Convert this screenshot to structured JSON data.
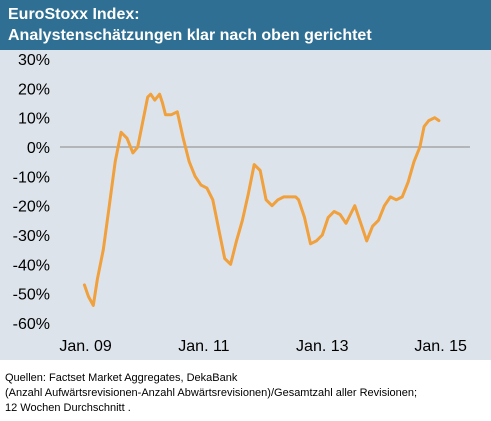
{
  "colors": {
    "title_bg": "#2e6f93",
    "plot_bg": "#dde3ea",
    "line": "#f0a03c",
    "axis": "#888888"
  },
  "header": {
    "title_line1": "EuroStoxx Index:",
    "title_line2": "Analystenschätzungen klar nach oben gerichtet"
  },
  "source": {
    "line1": "Quellen: Factset Market Aggregates, DekaBank",
    "line2": "(Anzahl Aufwärtsrevisionen-Anzahl Abwärtsrevisionen)/Gesamtzahl aller Revisionen;",
    "line3": "12 Wochen Durchschnitt ."
  },
  "chart_data": {
    "type": "line",
    "title": "EuroStoxx Index: Analystenschätzungen klar nach oben gerichtet",
    "xlabel": "",
    "ylabel": "",
    "x_ticks": [
      "Jan. 09",
      "Jan. 11",
      "Jan. 13",
      "Jan. 15"
    ],
    "x_tick_values": [
      2009,
      2011,
      2013,
      2015
    ],
    "y_ticks": [
      "30%",
      "20%",
      "10%",
      "0%",
      "-10%",
      "-20%",
      "-30%",
      "-40%",
      "-50%",
      "-60%"
    ],
    "y_tick_values": [
      30,
      20,
      10,
      0,
      -10,
      -20,
      -30,
      -40,
      -50,
      -60
    ],
    "xlim": [
      2008.5,
      2015.8
    ],
    "ylim": [
      -60,
      30
    ],
    "grid": false,
    "series": [
      {
        "values_unit": "percent",
        "points": [
          [
            2008.98,
            -47
          ],
          [
            2009.05,
            -51
          ],
          [
            2009.13,
            -54
          ],
          [
            2009.2,
            -45
          ],
          [
            2009.3,
            -35
          ],
          [
            2009.4,
            -20
          ],
          [
            2009.5,
            -5
          ],
          [
            2009.6,
            5
          ],
          [
            2009.7,
            3
          ],
          [
            2009.8,
            -2
          ],
          [
            2009.88,
            0
          ],
          [
            2009.95,
            7
          ],
          [
            2010.05,
            17
          ],
          [
            2010.1,
            18
          ],
          [
            2010.17,
            16
          ],
          [
            2010.25,
            18
          ],
          [
            2010.3,
            15
          ],
          [
            2010.35,
            11
          ],
          [
            2010.45,
            11
          ],
          [
            2010.55,
            12
          ],
          [
            2010.65,
            3
          ],
          [
            2010.75,
            -5
          ],
          [
            2010.85,
            -10
          ],
          [
            2010.95,
            -13
          ],
          [
            2011.05,
            -14
          ],
          [
            2011.15,
            -18
          ],
          [
            2011.25,
            -28
          ],
          [
            2011.35,
            -38
          ],
          [
            2011.45,
            -40
          ],
          [
            2011.55,
            -32
          ],
          [
            2011.65,
            -25
          ],
          [
            2011.75,
            -16
          ],
          [
            2011.85,
            -6
          ],
          [
            2011.95,
            -8
          ],
          [
            2012.05,
            -18
          ],
          [
            2012.15,
            -20
          ],
          [
            2012.25,
            -18
          ],
          [
            2012.35,
            -17
          ],
          [
            2012.45,
            -17
          ],
          [
            2012.55,
            -17
          ],
          [
            2012.6,
            -18
          ],
          [
            2012.7,
            -24
          ],
          [
            2012.8,
            -33
          ],
          [
            2012.9,
            -32
          ],
          [
            2013.0,
            -30
          ],
          [
            2013.1,
            -24
          ],
          [
            2013.2,
            -22
          ],
          [
            2013.3,
            -23
          ],
          [
            2013.4,
            -26
          ],
          [
            2013.5,
            -22
          ],
          [
            2013.55,
            -20
          ],
          [
            2013.65,
            -26
          ],
          [
            2013.75,
            -32
          ],
          [
            2013.85,
            -27
          ],
          [
            2013.95,
            -25
          ],
          [
            2014.05,
            -20
          ],
          [
            2014.15,
            -17
          ],
          [
            2014.25,
            -18
          ],
          [
            2014.35,
            -17
          ],
          [
            2014.45,
            -12
          ],
          [
            2014.55,
            -5
          ],
          [
            2014.65,
            0
          ],
          [
            2014.72,
            7
          ],
          [
            2014.8,
            9
          ],
          [
            2014.9,
            10
          ],
          [
            2014.97,
            9
          ]
        ]
      }
    ]
  }
}
